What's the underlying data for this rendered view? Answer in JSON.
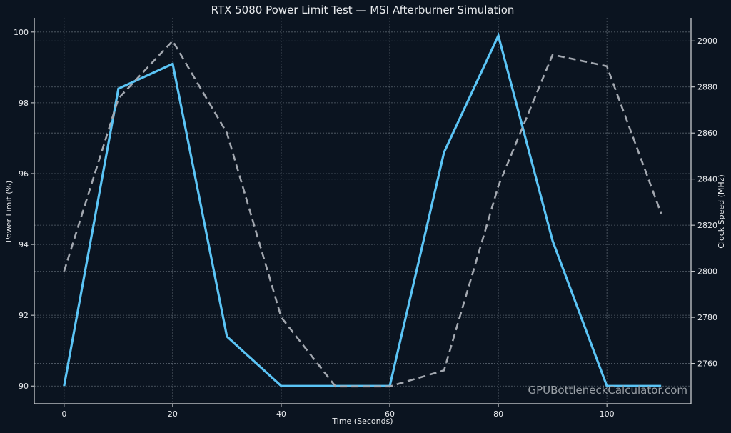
{
  "chart_data": {
    "type": "line",
    "title": "RTX 5080 Power Limit Test — MSI Afterburner Simulation",
    "xlabel": "Time (Seconds)",
    "ylabel_left": "Power Limit (%)",
    "ylabel_right": "Clock Speed (MHz)",
    "watermark": "GPUBottleneckCalculator.com",
    "x": [
      0,
      10,
      20,
      30,
      40,
      50,
      60,
      70,
      80,
      90,
      100,
      110
    ],
    "xlim": [
      -5.5,
      115.5
    ],
    "xticks": [
      0,
      20,
      40,
      60,
      80,
      100
    ],
    "ylim_left": [
      89.5,
      100.4
    ],
    "yticks_left": [
      90,
      92,
      94,
      96,
      98,
      100
    ],
    "ylim_right": [
      2742.5,
      2910
    ],
    "yticks_right": [
      2760,
      2780,
      2800,
      2820,
      2840,
      2860,
      2880,
      2900
    ],
    "grid": true,
    "series": [
      {
        "axis": "left",
        "style": "solid",
        "color": "#5bc4f5",
        "values": [
          90.0,
          98.4,
          99.1,
          91.4,
          90.0,
          90.0,
          90.0,
          96.6,
          99.9,
          94.1,
          90.0,
          90.0
        ]
      },
      {
        "axis": "right",
        "style": "dashed",
        "color": "#a3a8b0",
        "values": [
          2800,
          2875,
          2900,
          2860,
          2780,
          2750,
          2750,
          2757,
          2837,
          2894,
          2889,
          2825
        ]
      }
    ],
    "colors": {
      "background": "#0b1420",
      "text": "#e8eaed",
      "axis": "#d8dadd",
      "grid": "#56606b",
      "watermark": "#9aa0a6"
    }
  }
}
